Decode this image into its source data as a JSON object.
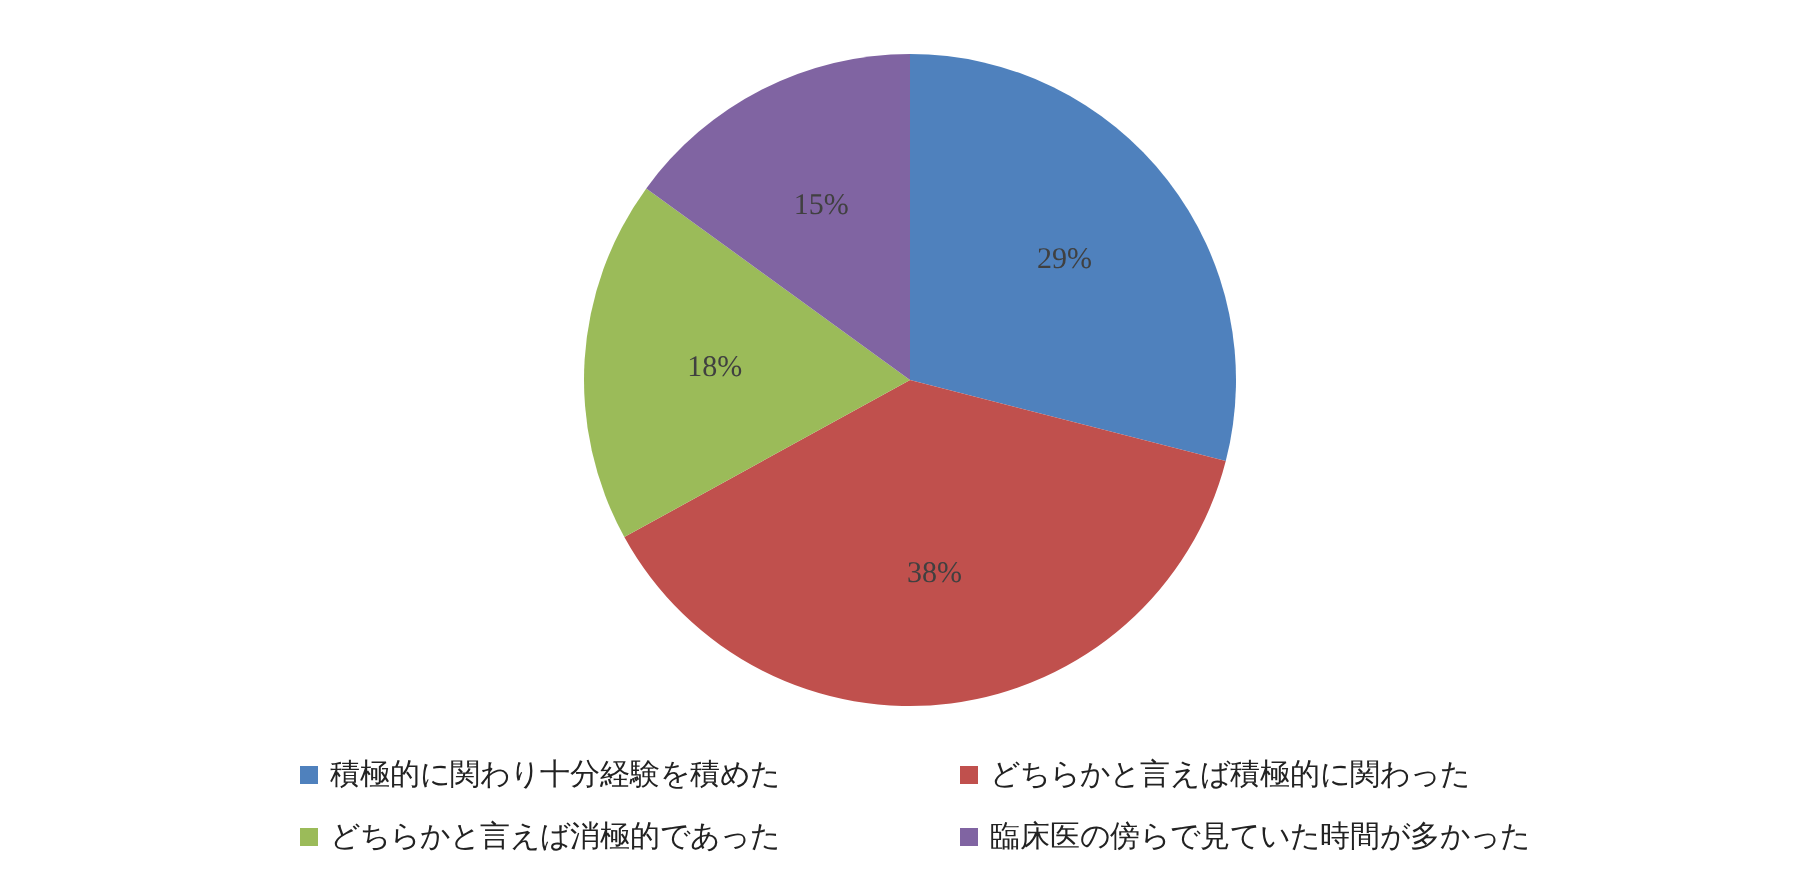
{
  "chart_data": {
    "type": "pie",
    "categories": [
      "積極的に関わり十分経験を積めた",
      "どちらかと言えば積極的に関わった",
      "どちらかと言えば消極的であった",
      "臨床医の傍らで見ていた時間が多かった"
    ],
    "values": [
      29,
      38,
      18,
      15
    ],
    "colors": [
      "#4f81bd",
      "#c0504d",
      "#9bbb59",
      "#8064a2"
    ],
    "value_labels": [
      "29%",
      "38%",
      "18%",
      "15%"
    ],
    "legend": "bottom"
  }
}
